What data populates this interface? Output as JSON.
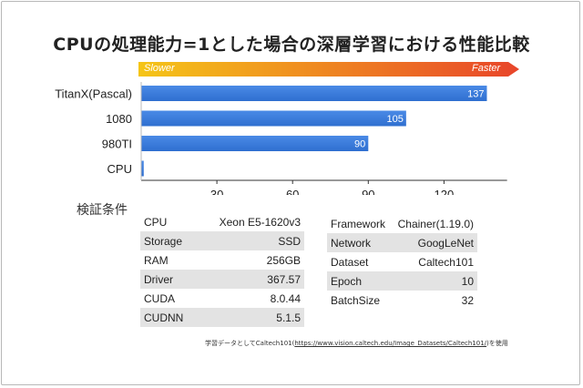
{
  "title": "CPUの処理能力=1とした場合の深層学習における性能比較",
  "speed_bar": {
    "slow_label": "Slower",
    "fast_label": "Faster",
    "color_start": "#f5c518",
    "color_end": "#e8452a"
  },
  "colors": {
    "bar": "#2f6fd0",
    "bar_light": "#4a8ae6",
    "axis": "#333333"
  },
  "chart_data": {
    "type": "bar",
    "orientation": "horizontal",
    "categories": [
      "TitanX(Pascal)",
      "1080",
      "980TI",
      "CPU"
    ],
    "values": [
      137,
      105,
      90,
      1
    ],
    "value_labels": [
      "137",
      "105",
      "90",
      ""
    ],
    "xlim": [
      0,
      145
    ],
    "xticks": [
      30,
      60,
      90,
      120
    ],
    "xtick_labels": [
      "30",
      "60",
      "90",
      "120"
    ],
    "grid": false
  },
  "section_title": "検証条件",
  "spec_left": [
    {
      "key": "CPU",
      "value": "Xeon E5-1620v3"
    },
    {
      "key": "Storage",
      "value": "SSD"
    },
    {
      "key": "RAM",
      "value": "256GB"
    },
    {
      "key": "Driver",
      "value": "367.57"
    },
    {
      "key": "CUDA",
      "value": "8.0.44"
    },
    {
      "key": "CUDNN",
      "value": "5.1.5"
    }
  ],
  "spec_right": [
    {
      "key": "Framework",
      "value": "Chainer(1.19.0)"
    },
    {
      "key": "Network",
      "value": "GoogLeNet"
    },
    {
      "key": "Dataset",
      "value": "Caltech101"
    },
    {
      "key": "Epoch",
      "value": "10"
    },
    {
      "key": "BatchSize",
      "value": "32"
    }
  ],
  "footnote": {
    "prefix": "学習データとしてCaltech101(",
    "url": "https://www.vision.caltech.edu/Image_Datasets/Caltech101/",
    "suffix": ")を使用"
  }
}
